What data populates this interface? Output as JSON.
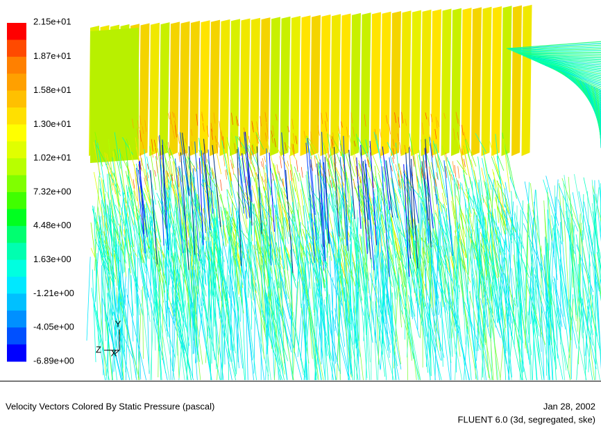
{
  "colorbar": {
    "labels": [
      "2.15e+01",
      "1.87e+01",
      "1.58e+01",
      "1.30e+01",
      "1.02e+01",
      "7.32e+00",
      "4.48e+00",
      "1.63e+00",
      "-1.21e+00",
      "-4.05e+00",
      "-6.89e+00"
    ]
  },
  "axes": {
    "y": "Y",
    "z": "Z",
    "x": "X"
  },
  "footer": {
    "title": "Velocity Vectors Colored By Static Pressure (pascal)",
    "date": "Jan 28, 2002",
    "version": "FLUENT 6.0 (3d, segregated, ske)"
  }
}
